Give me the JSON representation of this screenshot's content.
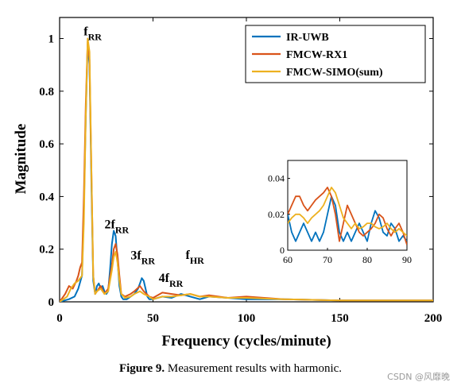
{
  "chart_data": {
    "type": "line",
    "title": "",
    "xlabel": "Frequency (cycles/minute)",
    "ylabel": "Magnitude",
    "xlim": [
      0,
      200
    ],
    "ylim": [
      0,
      1.08
    ],
    "xticks": [
      "0",
      "50",
      "100",
      "150",
      "200"
    ],
    "yticks": [
      "0",
      "0.2",
      "0.4",
      "0.6",
      "0.8",
      "1"
    ],
    "grid": false,
    "legend_position": "top-right",
    "series": [
      {
        "name": "IR-UWB",
        "color": "#0072BD",
        "x": [
          0,
          5,
          8,
          10,
          12,
          13,
          14,
          15,
          16,
          17,
          18,
          19,
          20,
          21,
          22,
          23,
          24,
          25,
          26,
          27,
          28,
          29,
          30,
          31,
          32,
          33,
          34,
          36,
          38,
          40,
          42,
          43,
          44,
          45,
          46,
          47,
          48,
          50,
          55,
          60,
          65,
          70,
          75,
          80,
          90,
          100,
          120,
          150,
          175,
          200
        ],
        "values": [
          0,
          0.01,
          0.02,
          0.05,
          0.1,
          0.35,
          0.7,
          0.98,
          0.9,
          0.45,
          0.08,
          0.03,
          0.06,
          0.07,
          0.05,
          0.06,
          0.04,
          0.03,
          0.04,
          0.12,
          0.22,
          0.27,
          0.25,
          0.16,
          0.06,
          0.02,
          0.01,
          0.01,
          0.02,
          0.03,
          0.05,
          0.07,
          0.09,
          0.08,
          0.05,
          0.02,
          0.01,
          0.01,
          0.02,
          0.015,
          0.03,
          0.02,
          0.01,
          0.02,
          0.015,
          0.01,
          0.01,
          0.005,
          0.005,
          0.005
        ]
      },
      {
        "name": "FMCW-RX1",
        "color": "#D95319",
        "x": [
          0,
          3,
          5,
          7,
          9,
          10,
          11,
          12,
          13,
          14,
          15,
          16,
          17,
          18,
          19,
          20,
          22,
          24,
          26,
          28,
          29,
          30,
          31,
          32,
          33,
          35,
          38,
          40,
          43,
          45,
          48,
          50,
          55,
          60,
          65,
          70,
          75,
          80,
          90,
          100,
          120,
          150,
          175,
          200
        ],
        "values": [
          0,
          0.03,
          0.06,
          0.05,
          0.08,
          0.1,
          0.13,
          0.15,
          0.4,
          0.75,
          0.99,
          0.92,
          0.5,
          0.1,
          0.03,
          0.04,
          0.06,
          0.03,
          0.05,
          0.14,
          0.2,
          0.22,
          0.18,
          0.1,
          0.03,
          0.02,
          0.03,
          0.04,
          0.06,
          0.04,
          0.02,
          0.015,
          0.035,
          0.03,
          0.025,
          0.03,
          0.02,
          0.025,
          0.015,
          0.02,
          0.01,
          0.005,
          0.005,
          0.005
        ]
      },
      {
        "name": "FMCW-SIMO(sum)",
        "color": "#EDB120",
        "x": [
          0,
          4,
          6,
          8,
          10,
          12,
          13,
          14,
          15,
          16,
          17,
          18,
          19,
          20,
          22,
          24,
          26,
          28,
          29,
          30,
          31,
          32,
          33,
          35,
          38,
          40,
          43,
          45,
          48,
          50,
          55,
          60,
          65,
          70,
          75,
          80,
          90,
          100,
          120,
          150,
          175,
          200
        ],
        "values": [
          0,
          0.02,
          0.05,
          0.07,
          0.08,
          0.1,
          0.3,
          0.7,
          1.0,
          0.95,
          0.5,
          0.1,
          0.03,
          0.04,
          0.05,
          0.03,
          0.04,
          0.12,
          0.17,
          0.19,
          0.15,
          0.08,
          0.03,
          0.015,
          0.02,
          0.03,
          0.04,
          0.03,
          0.02,
          0.01,
          0.02,
          0.02,
          0.025,
          0.03,
          0.02,
          0.02,
          0.015,
          0.015,
          0.01,
          0.005,
          0.005,
          0.005
        ]
      }
    ],
    "annotations": [
      {
        "main": "f",
        "sub": "RR",
        "x": 15,
        "y": 1.0
      },
      {
        "main": "2f",
        "sub": "RR",
        "x": 30,
        "y": 0.27
      },
      {
        "main": "3f",
        "sub": "RR",
        "x": 44,
        "y": 0.15
      },
      {
        "main": "4f",
        "sub": "RR",
        "x": 59,
        "y": 0.06
      },
      {
        "main": "f",
        "sub": "HR",
        "x": 70,
        "y": 0.12
      }
    ],
    "inset": {
      "xlim": [
        60,
        90
      ],
      "ylim": [
        0,
        0.05
      ],
      "xticks": [
        "60",
        "70",
        "80",
        "90"
      ],
      "yticks": [
        "0",
        "0.02",
        "0.04"
      ],
      "series": [
        {
          "name": "IR-UWB",
          "x": [
            60,
            61,
            62,
            63,
            64,
            65,
            66,
            67,
            68,
            69,
            70,
            71,
            72,
            73,
            74,
            75,
            76,
            77,
            78,
            79,
            80,
            81,
            82,
            83,
            84,
            85,
            86,
            87,
            88,
            89,
            90
          ],
          "values": [
            0.02,
            0.01,
            0.005,
            0.01,
            0.015,
            0.01,
            0.005,
            0.01,
            0.005,
            0.01,
            0.02,
            0.03,
            0.025,
            0.01,
            0.005,
            0.01,
            0.005,
            0.01,
            0.015,
            0.01,
            0.005,
            0.015,
            0.022,
            0.018,
            0.01,
            0.008,
            0.015,
            0.012,
            0.005,
            0.008,
            0.005
          ]
        },
        {
          "name": "FMCW-RX1",
          "x": [
            60,
            61,
            62,
            63,
            64,
            65,
            66,
            67,
            68,
            69,
            70,
            71,
            72,
            73,
            74,
            75,
            76,
            77,
            78,
            79,
            80,
            81,
            82,
            83,
            84,
            85,
            86,
            87,
            88,
            89,
            90
          ],
          "values": [
            0.02,
            0.025,
            0.03,
            0.03,
            0.025,
            0.022,
            0.025,
            0.028,
            0.03,
            0.032,
            0.035,
            0.03,
            0.02,
            0.005,
            0.015,
            0.025,
            0.02,
            0.015,
            0.01,
            0.008,
            0.01,
            0.012,
            0.015,
            0.02,
            0.018,
            0.012,
            0.008,
            0.012,
            0.015,
            0.01,
            0.003
          ]
        },
        {
          "name": "FMCW-SIMO(sum)",
          "x": [
            60,
            61,
            62,
            63,
            64,
            65,
            66,
            67,
            68,
            69,
            70,
            71,
            72,
            73,
            74,
            75,
            76,
            77,
            78,
            79,
            80,
            81,
            82,
            83,
            84,
            85,
            86,
            87,
            88,
            89,
            90
          ],
          "values": [
            0.015,
            0.018,
            0.02,
            0.02,
            0.018,
            0.015,
            0.018,
            0.02,
            0.022,
            0.025,
            0.03,
            0.035,
            0.032,
            0.025,
            0.018,
            0.015,
            0.012,
            0.015,
            0.012,
            0.013,
            0.015,
            0.015,
            0.013,
            0.012,
            0.013,
            0.015,
            0.012,
            0.01,
            0.012,
            0.01,
            0.008
          ]
        }
      ]
    }
  },
  "caption": {
    "label": "Figure 9.",
    "text": " Measurement results with harmonic."
  },
  "watermark": "CSDN @风靡晚"
}
